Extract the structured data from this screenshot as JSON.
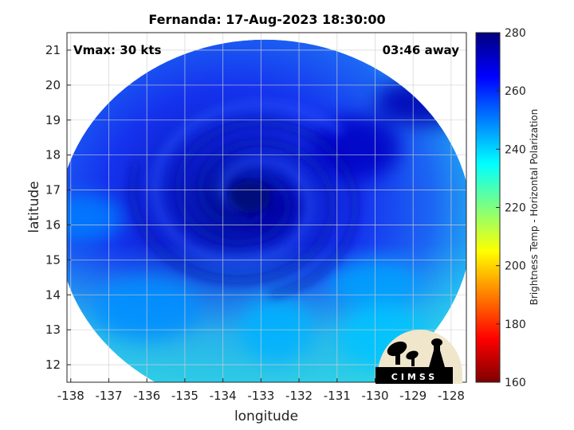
{
  "chart_data": {
    "type": "heatmap",
    "title": "Fernanda: 17-Aug-2023 18:30:00",
    "annotations": {
      "vmax": "Vmax: 30 kts",
      "time_away": "03:46 away"
    },
    "xlabel": "longitude",
    "ylabel": "latitude",
    "xlim": [
      -138.1,
      -127.6
    ],
    "ylim": [
      11.5,
      21.5
    ],
    "x_ticks": [
      -138,
      -137,
      -136,
      -135,
      -134,
      -133,
      -132,
      -131,
      -130,
      -129,
      -128
    ],
    "y_ticks": [
      12,
      13,
      14,
      15,
      16,
      17,
      18,
      19,
      20,
      21
    ],
    "grid": true,
    "colorbar": {
      "label": "Brightness Temp - Horizontal Polarization",
      "range": [
        160,
        280
      ],
      "ticks": [
        160,
        180,
        200,
        220,
        240,
        260,
        280
      ],
      "colormap": "jet",
      "position": "right"
    },
    "swath": {
      "shape": "circular",
      "center_lon": -132.9,
      "center_lat": 16.0,
      "lon_radius": 5.45,
      "lat_radius": 5.3
    },
    "storm_center": {
      "lon": -133.3,
      "lat": 16.8
    },
    "brightness_features": [
      {
        "lon": -133.0,
        "lat": 16.5,
        "value": 276
      },
      {
        "lon": -130.5,
        "lat": 18.2,
        "value": 272
      },
      {
        "lon": -128.6,
        "lat": 19.5,
        "value": 274
      },
      {
        "lon": -132.6,
        "lat": 13.0,
        "value": 244
      },
      {
        "lon": -130.0,
        "lat": 14.3,
        "value": 246
      },
      {
        "lon": -136.0,
        "lat": 13.6,
        "value": 248
      },
      {
        "lon": -137.6,
        "lat": 16.2,
        "value": 250
      },
      {
        "lon": -129.8,
        "lat": 12.8,
        "value": 242
      }
    ]
  },
  "logo": {
    "text": "CIMSS"
  },
  "colors": {
    "jet": [
      "#00007f",
      "#0000ff",
      "#007fff",
      "#00ffff",
      "#7fff7f",
      "#ffff00",
      "#ff7f00",
      "#ff0000",
      "#7f0000"
    ],
    "swath_base": "#1f3ff5",
    "swath_dark": "#00129a",
    "swath_light": "#22c8f4"
  }
}
